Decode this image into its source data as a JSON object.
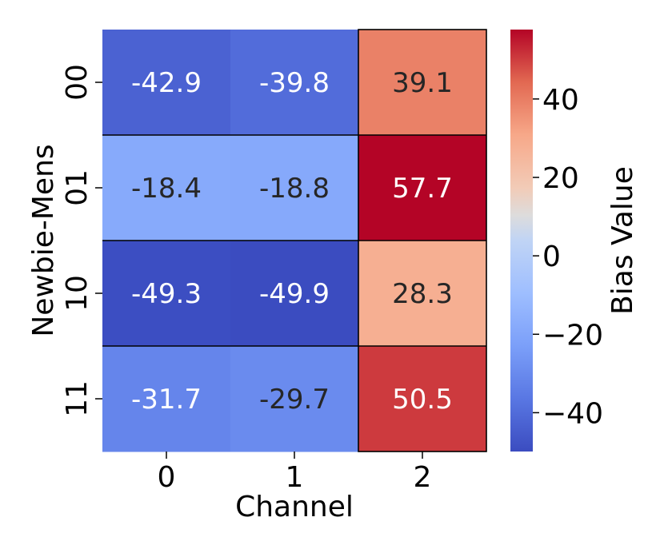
{
  "chart_data": {
    "type": "heatmap",
    "title": "",
    "xlabel": "Channel",
    "ylabel": "Newbie-Mens",
    "x_categories": [
      "0",
      "1",
      "2"
    ],
    "y_categories": [
      "00",
      "01",
      "10",
      "11"
    ],
    "values": [
      [
        -42.9,
        -39.8,
        39.1
      ],
      [
        -18.4,
        -18.8,
        57.7
      ],
      [
        -49.3,
        -49.9,
        28.3
      ],
      [
        -31.7,
        -29.7,
        50.5
      ]
    ],
    "cell_labels": [
      [
        "-42.9",
        "-39.8",
        "39.1"
      ],
      [
        "-18.4",
        "-18.8",
        "57.7"
      ],
      [
        "-49.3",
        "-49.9",
        "28.3"
      ],
      [
        "-31.7",
        "-29.7",
        "50.5"
      ]
    ],
    "colormap": "coolwarm",
    "vmin": -49.9,
    "vmax": 57.7,
    "colorbar": {
      "label": "Bias Value",
      "ticks": [
        -40,
        -20,
        0,
        20,
        40
      ],
      "tick_labels": [
        "−40",
        "−20",
        "0",
        "20",
        "40"
      ]
    },
    "highlighted_column": "2",
    "grid": false,
    "legend": "none"
  }
}
